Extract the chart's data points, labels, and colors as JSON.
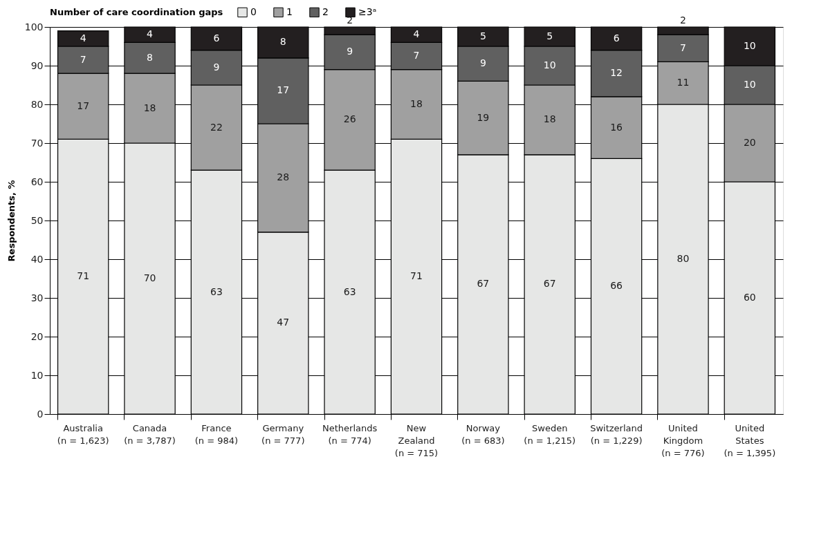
{
  "chart_data": {
    "type": "bar",
    "stacked": true,
    "ylabel": "Respondents, %",
    "legend_title": "Number of care coordination gaps",
    "legend": "top",
    "categories": [
      "Australia\n(n = 1,623)",
      "Canada\n(n = 3,787)",
      "France\n(n = 984)",
      "Germany\n(n = 777)",
      "Netherlands\n(n = 774)",
      "New\nZealand\n(n = 715)",
      "Norway\n(n = 683)",
      "Sweden\n(n = 1,215)",
      "Switzerland\n(n = 1,229)",
      "United\nKingdom\n(n = 776)",
      "United\nStates\n(n = 1,395)"
    ],
    "series": [
      {
        "name": "0",
        "color": "#e6e7e6",
        "values": [
          71,
          70,
          63,
          47,
          63,
          71,
          67,
          67,
          66,
          80,
          60
        ]
      },
      {
        "name": "1",
        "color": "#a0a0a0",
        "values": [
          17,
          18,
          22,
          28,
          26,
          18,
          19,
          18,
          16,
          11,
          20
        ]
      },
      {
        "name": "2",
        "color": "#606060",
        "values": [
          7,
          8,
          9,
          17,
          9,
          7,
          9,
          10,
          12,
          7,
          10
        ]
      },
      {
        "name": "≥3ᵃ",
        "color": "#231f20",
        "values": [
          4,
          4,
          6,
          8,
          2,
          4,
          5,
          5,
          6,
          2,
          10
        ]
      }
    ],
    "ylim": [
      0,
      100
    ],
    "yticks": [
      0,
      10,
      20,
      30,
      40,
      50,
      60,
      70,
      80,
      90,
      100
    ],
    "grid": "y",
    "data_labels": true
  }
}
